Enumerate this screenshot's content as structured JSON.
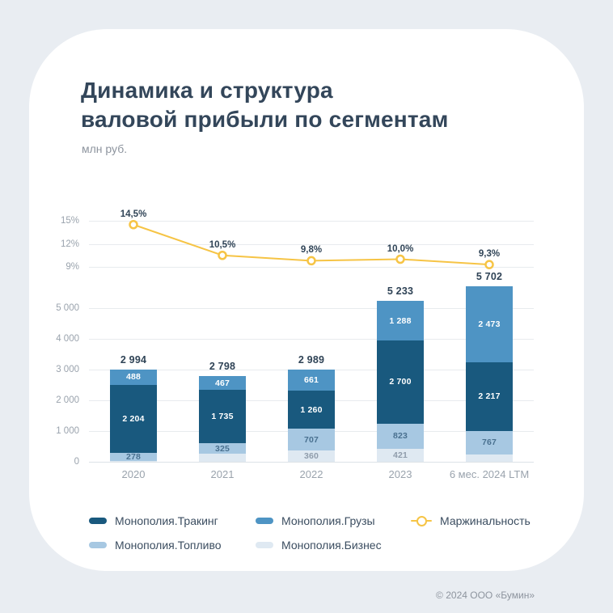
{
  "header": {
    "title_line1": "Динамика и структура",
    "title_line2": "валовой прибыли по сегментам",
    "units": "млн руб."
  },
  "footer": {
    "copyright": "© 2024 ООО «Бумин»"
  },
  "colors": {
    "tracking": "#19597e",
    "gruzy": "#4e94c4",
    "toplivo": "#a7c8e2",
    "biznes": "#dfe9f2",
    "margin_line": "#f6c445",
    "background": "#e9edf2",
    "card": "#ffffff",
    "title_text": "#33465a",
    "axis_text": "#9aa3ad",
    "grid": "#e8ebee"
  },
  "legend": {
    "items": [
      {
        "label": "Монополия.Тракинг",
        "color": "tracking",
        "marker": "swatch"
      },
      {
        "label": "Монополия.Грузы",
        "color": "gruzy",
        "marker": "swatch"
      },
      {
        "label": "Маржинальность",
        "color": "margin_line",
        "marker": "line"
      },
      {
        "label": "Монополия.Топливо",
        "color": "toplivo",
        "marker": "swatch"
      },
      {
        "label": "Монополия.Бизнес",
        "color": "biznes",
        "marker": "swatch"
      }
    ]
  },
  "chart_data": {
    "type": "stacked-bar-with-line",
    "title": "Динамика и структура валовой прибыли по сегментам",
    "units": "млн руб.",
    "categories": [
      "2020",
      "2021",
      "2022",
      "2023",
      "6 мес. 2024 LTM"
    ],
    "totals": {
      "values": [
        2994,
        2798,
        2989,
        5233,
        5702
      ],
      "labels": [
        "2 994",
        "2 798",
        "2 989",
        "5 233",
        "5 702"
      ]
    },
    "series": [
      {
        "name": "Монополия.Бизнес",
        "color": "biznes",
        "label_color": "#8f9cab",
        "values": [
          24,
          271,
          360,
          421,
          245
        ],
        "labels": [
          "",
          "",
          "360",
          "421",
          ""
        ]
      },
      {
        "name": "Монополия.Топливо",
        "color": "toplivo",
        "label_color": "#49708f",
        "values": [
          278,
          325,
          707,
          823,
          767
        ],
        "labels": [
          "278",
          "325",
          "707",
          "823",
          "767"
        ]
      },
      {
        "name": "Монополия.Тракинг",
        "color": "tracking",
        "label_color": "#ffffff",
        "values": [
          2204,
          1735,
          1260,
          2700,
          2217
        ],
        "labels": [
          "2 204",
          "1 735",
          "1 260",
          "2 700",
          "2 217"
        ]
      },
      {
        "name": "Монополия.Грузы",
        "color": "gruzy",
        "label_color": "#ffffff",
        "values": [
          488,
          467,
          661,
          1288,
          2473
        ],
        "labels": [
          "488",
          "467",
          "661",
          "1 288",
          "2 473"
        ]
      }
    ],
    "line": {
      "name": "Маржинальность",
      "values": [
        14.5,
        10.5,
        9.8,
        10.0,
        9.3
      ],
      "labels": [
        "14,5%",
        "10,5%",
        "9,8%",
        "10,0%",
        "9,3%"
      ]
    },
    "value_axis": {
      "ticks": [
        0,
        1000,
        2000,
        3000,
        4000,
        5000
      ],
      "labels": [
        "0",
        "1 000",
        "2 000",
        "3 000",
        "4 000",
        "5 000"
      ]
    },
    "percent_axis": {
      "ticks": [
        9,
        12,
        15
      ],
      "labels": [
        "9%",
        "12%",
        "15%"
      ]
    },
    "legend_position": "bottom",
    "grid": true
  }
}
